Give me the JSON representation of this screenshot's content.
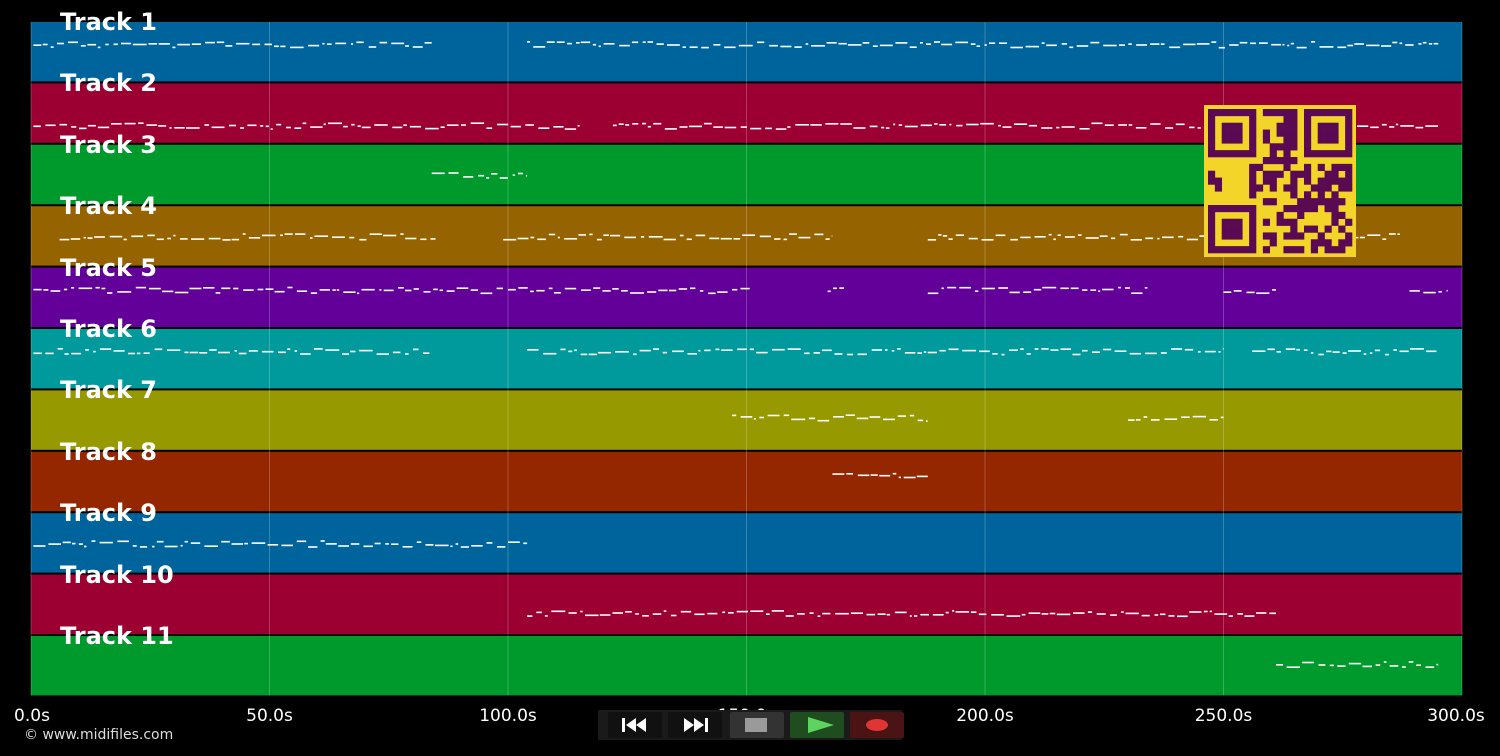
{
  "app": {
    "copyright": "© www.midifiles.com"
  },
  "timeline": {
    "max_seconds": 300,
    "ticks": [
      "0.0s",
      "50.0s",
      "100.0s",
      "150.0s",
      "200.0s",
      "250.0s",
      "300.0s"
    ]
  },
  "tracks": [
    {
      "name": "Track 1",
      "color": "#00649c"
    },
    {
      "name": "Track 2",
      "color": "#9c0033"
    },
    {
      "name": "Track 3",
      "color": "#009a2c"
    },
    {
      "name": "Track 4",
      "color": "#956300"
    },
    {
      "name": "Track 5",
      "color": "#620099"
    },
    {
      "name": "Track 6",
      "color": "#00999c"
    },
    {
      "name": "Track 7",
      "color": "#969a00"
    },
    {
      "name": "Track 8",
      "color": "#942700"
    },
    {
      "name": "Track 9",
      "color": "#00649c"
    },
    {
      "name": "Track 10",
      "color": "#9c0033"
    },
    {
      "name": "Track 11",
      "color": "#009a2c"
    }
  ],
  "note_spans": [
    [
      [
        0.5,
        84
      ],
      [
        104,
        295
      ]
    ],
    [
      [
        0.5,
        115
      ],
      [
        122,
        270
      ],
      [
        278,
        295
      ]
    ],
    [
      [
        84,
        104
      ]
    ],
    [
      [
        6,
        85
      ],
      [
        99,
        168
      ],
      [
        188,
        288
      ]
    ],
    [
      [
        0.5,
        151
      ],
      [
        167,
        171
      ],
      [
        188,
        235
      ],
      [
        250,
        261
      ],
      [
        289,
        297
      ]
    ],
    [
      [
        0.5,
        84
      ],
      [
        104,
        250
      ],
      [
        256,
        295
      ]
    ],
    [
      [
        147,
        188
      ],
      [
        230,
        250
      ]
    ],
    [
      [
        168,
        188
      ]
    ],
    [
      [
        0.5,
        104
      ]
    ],
    [
      [
        104,
        261
      ]
    ],
    [
      [
        261,
        295
      ]
    ]
  ],
  "transport": {
    "buttons": [
      {
        "name": "rewind-button",
        "icon": "rewind-icon"
      },
      {
        "name": "fast-forward-button",
        "icon": "fast-forward-icon"
      },
      {
        "name": "stop-button",
        "icon": "stop-icon"
      },
      {
        "name": "play-button",
        "icon": "play-icon"
      },
      {
        "name": "record-button",
        "icon": "record-icon"
      }
    ]
  },
  "qr_code": {
    "color": "#f3d52a",
    "module_color": "#5a0a52"
  }
}
